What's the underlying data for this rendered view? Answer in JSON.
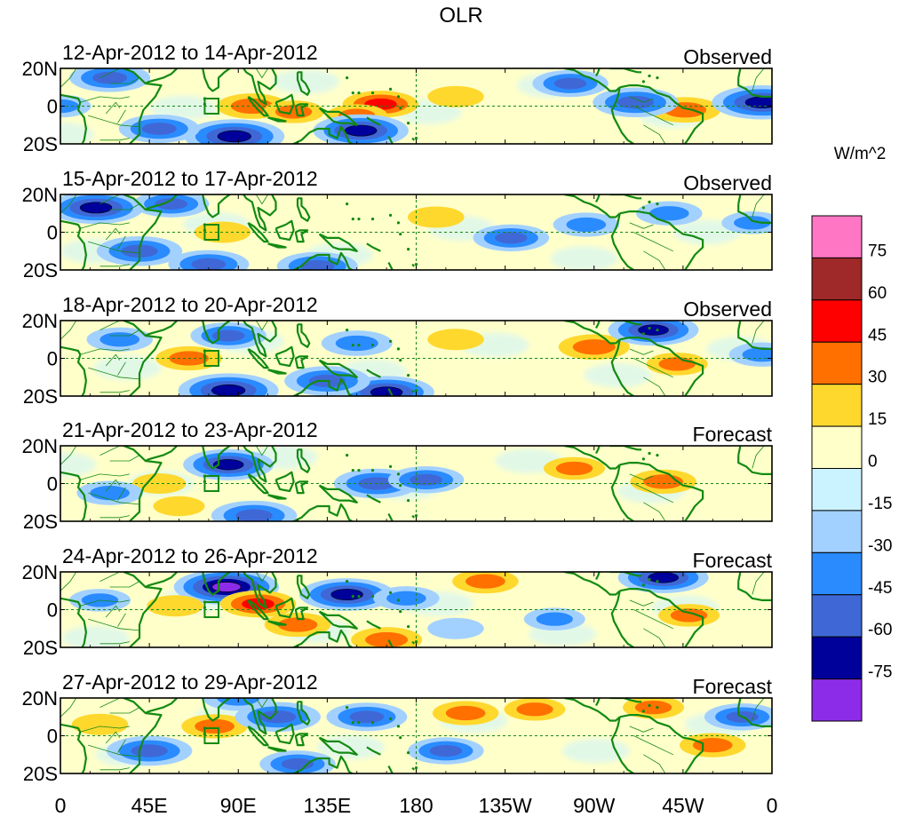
{
  "title": "OLR",
  "colorbar": {
    "unit_label": "W/m^2",
    "tick_labels": [
      "75",
      "60",
      "45",
      "30",
      "15",
      "0",
      "-15",
      "-30",
      "-45",
      "-60",
      "-75"
    ],
    "colors_top_to_bottom": [
      "#ff77c4",
      "#9f2828",
      "#ff0000",
      "#ff7000",
      "#ffd82e",
      "#ffffca",
      "#cbf3ff",
      "#a3d1ff",
      "#2a8bff",
      "#3f68d6",
      "#00009a",
      "#8d2ce8"
    ]
  },
  "x_axis": {
    "ticks": [
      {
        "lon": 0,
        "label": "0"
      },
      {
        "lon": 45,
        "label": "45E"
      },
      {
        "lon": 90,
        "label": "90E"
      },
      {
        "lon": 135,
        "label": "135E"
      },
      {
        "lon": 180,
        "label": "180"
      },
      {
        "lon": 225,
        "label": "135W"
      },
      {
        "lon": 270,
        "label": "90W"
      },
      {
        "lon": 315,
        "label": "45W"
      },
      {
        "lon": 360,
        "label": "0"
      }
    ],
    "range": [
      0,
      360
    ]
  },
  "y_axis": {
    "ticks": [
      {
        "lat": 20,
        "label": "20N"
      },
      {
        "lat": 0,
        "label": "0"
      },
      {
        "lat": -20,
        "label": "20S"
      }
    ],
    "range": [
      -20,
      20
    ]
  },
  "panels": [
    {
      "date_range": "12-Apr-2012 to 14-Apr-2012",
      "type_label": "Observed"
    },
    {
      "date_range": "15-Apr-2012 to 17-Apr-2012",
      "type_label": "Observed"
    },
    {
      "date_range": "18-Apr-2012 to 20-Apr-2012",
      "type_label": "Observed"
    },
    {
      "date_range": "21-Apr-2012 to 23-Apr-2012",
      "type_label": "Forecast"
    },
    {
      "date_range": "24-Apr-2012 to 26-Apr-2012",
      "type_label": "Forecast"
    },
    {
      "date_range": "27-Apr-2012 to 29-Apr-2012",
      "type_label": "Forecast"
    }
  ],
  "chart_data": {
    "type": "heatmap",
    "title": "OLR",
    "unit": "W/m^2",
    "xlim": [
      0,
      360
    ],
    "ylim": [
      -20,
      20
    ],
    "levels": [
      -75,
      -60,
      -45,
      -30,
      -15,
      0,
      15,
      30,
      45,
      60,
      75
    ],
    "dashed_reference_lines": {
      "lat": 0,
      "lon": 180
    },
    "panels": [
      {
        "date_range": "12-Apr-2012 to 14-Apr-2012",
        "kind": "Observed",
        "anomalies": [
          {
            "lon": 162,
            "lat": 1,
            "value": 45
          },
          {
            "lon": 150,
            "lat": -5,
            "value": 30
          },
          {
            "lon": 97,
            "lat": 0,
            "value": 40
          },
          {
            "lon": 118,
            "lat": -3,
            "value": 30
          },
          {
            "lon": 200,
            "lat": 5,
            "value": 25
          },
          {
            "lon": 316,
            "lat": -2,
            "value": 40
          },
          {
            "lon": 152,
            "lat": -13,
            "value": -65
          },
          {
            "lon": 88,
            "lat": -16,
            "value": -70
          },
          {
            "lon": 50,
            "lat": -12,
            "value": -50
          },
          {
            "lon": 355,
            "lat": 2,
            "value": -70
          },
          {
            "lon": 291,
            "lat": 2,
            "value": -55
          },
          {
            "lon": 258,
            "lat": 12,
            "value": -45
          },
          {
            "lon": 25,
            "lat": 15,
            "value": -50
          },
          {
            "lon": 0,
            "lat": 0,
            "value": -30
          }
        ]
      },
      {
        "date_range": "15-Apr-2012 to 17-Apr-2012",
        "kind": "Observed",
        "anomalies": [
          {
            "lon": 18,
            "lat": 13,
            "value": -65
          },
          {
            "lon": 40,
            "lat": -10,
            "value": -55
          },
          {
            "lon": 75,
            "lat": -17,
            "value": -50
          },
          {
            "lon": 56,
            "lat": 15,
            "value": -45
          },
          {
            "lon": 130,
            "lat": -18,
            "value": -50
          },
          {
            "lon": 190,
            "lat": 8,
            "value": 25
          },
          {
            "lon": 82,
            "lat": 0,
            "value": 25
          },
          {
            "lon": 228,
            "lat": -3,
            "value": -45
          },
          {
            "lon": 266,
            "lat": 4,
            "value": -35
          },
          {
            "lon": 308,
            "lat": 10,
            "value": -35
          },
          {
            "lon": 350,
            "lat": 5,
            "value": -30
          }
        ]
      },
      {
        "date_range": "18-Apr-2012 to 20-Apr-2012",
        "kind": "Observed",
        "anomalies": [
          {
            "lon": 85,
            "lat": -17,
            "value": -70
          },
          {
            "lon": 165,
            "lat": -18,
            "value": -65
          },
          {
            "lon": 135,
            "lat": -12,
            "value": -55
          },
          {
            "lon": 65,
            "lat": 0,
            "value": 35
          },
          {
            "lon": 270,
            "lat": 6,
            "value": 40
          },
          {
            "lon": 312,
            "lat": -3,
            "value": 30
          },
          {
            "lon": 200,
            "lat": 10,
            "value": 25
          },
          {
            "lon": 300,
            "lat": 15,
            "value": -60
          },
          {
            "lon": 85,
            "lat": 12,
            "value": -45
          },
          {
            "lon": 150,
            "lat": 8,
            "value": -40
          },
          {
            "lon": 30,
            "lat": 10,
            "value": -35
          },
          {
            "lon": 355,
            "lat": 2,
            "value": -35
          }
        ]
      },
      {
        "date_range": "21-Apr-2012 to 23-Apr-2012",
        "kind": "Forecast",
        "anomalies": [
          {
            "lon": 85,
            "lat": 10,
            "value": -60
          },
          {
            "lon": 98,
            "lat": -17,
            "value": -55
          },
          {
            "lon": 160,
            "lat": 0,
            "value": -55
          },
          {
            "lon": 185,
            "lat": 2,
            "value": -45
          },
          {
            "lon": 260,
            "lat": 8,
            "value": 30
          },
          {
            "lon": 305,
            "lat": 1,
            "value": 35
          },
          {
            "lon": 50,
            "lat": 0,
            "value": 22
          },
          {
            "lon": 60,
            "lat": -12,
            "value": 20
          },
          {
            "lon": 25,
            "lat": -5,
            "value": -35
          }
        ]
      },
      {
        "date_range": "24-Apr-2012 to 26-Apr-2012",
        "kind": "Forecast",
        "anomalies": [
          {
            "lon": 84,
            "lat": 12,
            "value": -75
          },
          {
            "lon": 100,
            "lat": 3,
            "value": 45
          },
          {
            "lon": 120,
            "lat": -8,
            "value": 35
          },
          {
            "lon": 165,
            "lat": -16,
            "value": 40
          },
          {
            "lon": 215,
            "lat": 15,
            "value": 35
          },
          {
            "lon": 145,
            "lat": 8,
            "value": -65
          },
          {
            "lon": 305,
            "lat": 17,
            "value": -60
          },
          {
            "lon": 318,
            "lat": -3,
            "value": 30
          },
          {
            "lon": 58,
            "lat": 2,
            "value": 25
          },
          {
            "lon": 175,
            "lat": 6,
            "value": -35
          },
          {
            "lon": 20,
            "lat": 5,
            "value": -30
          },
          {
            "lon": 250,
            "lat": -5,
            "value": -30
          },
          {
            "lon": 200,
            "lat": -10,
            "value": -25
          }
        ]
      },
      {
        "date_range": "27-Apr-2012 to 29-Apr-2012",
        "kind": "Forecast",
        "anomalies": [
          {
            "lon": 78,
            "lat": 5,
            "value": 35
          },
          {
            "lon": 110,
            "lat": 10,
            "value": -55
          },
          {
            "lon": 155,
            "lat": 10,
            "value": -50
          },
          {
            "lon": 205,
            "lat": 12,
            "value": 35
          },
          {
            "lon": 240,
            "lat": 14,
            "value": 30
          },
          {
            "lon": 45,
            "lat": -8,
            "value": -55
          },
          {
            "lon": 195,
            "lat": -8,
            "value": -45
          },
          {
            "lon": 330,
            "lat": -5,
            "value": 35
          },
          {
            "lon": 120,
            "lat": -15,
            "value": -45
          },
          {
            "lon": 20,
            "lat": 6,
            "value": 25
          },
          {
            "lon": 345,
            "lat": 10,
            "value": -45
          },
          {
            "lon": 90,
            "lat": 20,
            "value": -40
          },
          {
            "lon": 300,
            "lat": 15,
            "value": 30
          }
        ]
      }
    ]
  }
}
